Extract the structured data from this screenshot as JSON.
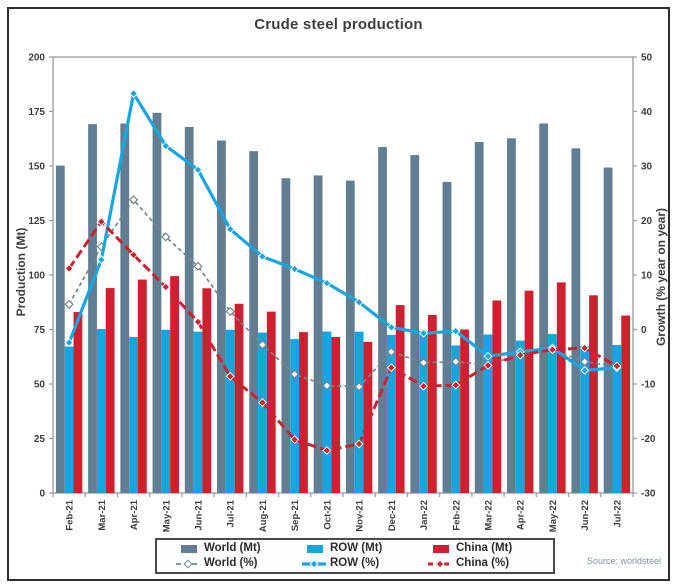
{
  "title": "Crude steel production",
  "source": "Source: worldsteel",
  "colors": {
    "world_bar": "#617e93",
    "row_bar": "#16a5df",
    "china_bar": "#cd2130",
    "world_line": "#76868f",
    "row_line": "#18a6e0",
    "china_line": "#c92331",
    "frame": "#9b9b9b",
    "tick_text": "#3d3d3d",
    "source_text": "#7d91a6",
    "border": "#2e2e2e"
  },
  "chart_data": {
    "type": "combo-bar-line",
    "title": "Crude steel production",
    "grid": false,
    "legend_position": "bottom",
    "categories": [
      "Feb-21",
      "Mar-21",
      "Apr-21",
      "May-21",
      "Jun-21",
      "Jul-21",
      "Aug-21",
      "Sep-21",
      "Oct-21",
      "Nov-21",
      "Dec-21",
      "Jan-22",
      "Feb-22",
      "Mar-22",
      "Apr-22",
      "May-22",
      "Jun-22",
      "Jul-22"
    ],
    "left_axis": {
      "title": "Production (Mt)",
      "min": 0,
      "max": 200,
      "ticks": [
        0,
        25,
        50,
        75,
        100,
        125,
        150,
        175,
        200
      ]
    },
    "right_axis": {
      "title": "Growth (% year on year)",
      "min": -30,
      "max": 50,
      "ticks": [
        -30,
        -20,
        -10,
        0,
        10,
        20,
        30,
        40,
        50
      ]
    },
    "bar_series": [
      {
        "name": "World (Mt)",
        "axis": "left",
        "color_key": "world_bar",
        "values": [
          150.2,
          169.2,
          169.5,
          174.4,
          167.9,
          161.7,
          156.8,
          144.4,
          145.7,
          143.3,
          158.7,
          155.0,
          142.7,
          161.0,
          162.7,
          169.5,
          158.1,
          149.3
        ]
      },
      {
        "name": "ROW (Mt)",
        "axis": "left",
        "color_key": "row_bar",
        "values": [
          67.2,
          75.2,
          71.6,
          74.9,
          74.0,
          74.9,
          73.6,
          70.6,
          74.1,
          74.0,
          72.5,
          73.3,
          67.7,
          72.7,
          69.9,
          72.9,
          67.4,
          67.9
        ]
      },
      {
        "name": "China (Mt)",
        "axis": "left",
        "color_key": "china_bar",
        "values": [
          83.0,
          94.0,
          97.9,
          99.5,
          93.9,
          86.8,
          83.2,
          73.8,
          71.6,
          69.3,
          86.2,
          81.7,
          75.0,
          88.3,
          92.8,
          96.6,
          90.7,
          81.4
        ]
      }
    ],
    "line_series": [
      {
        "name": "World (%)",
        "axis": "right",
        "color_key": "world_line",
        "dashed": true,
        "width": 1.7,
        "marker": "open",
        "values": [
          4.6,
          15.2,
          23.8,
          17.0,
          11.6,
          3.3,
          -2.8,
          -8.2,
          -10.3,
          -10.5,
          -4.1,
          -6.1,
          -5.9,
          -6.5,
          -4.6,
          -3.8,
          -5.9,
          -6.8
        ]
      },
      {
        "name": "ROW (%)",
        "axis": "right",
        "color_key": "row_line",
        "dashed": false,
        "width": 3.2,
        "marker": "filled",
        "values": [
          -2.4,
          12.8,
          43.3,
          33.7,
          29.3,
          18.4,
          13.4,
          11.1,
          8.5,
          5.0,
          0.4,
          -0.7,
          -0.3,
          -4.9,
          -4.1,
          -3.4,
          -7.5,
          -7.0
        ]
      },
      {
        "name": "China (%)",
        "axis": "right",
        "color_key": "china_line",
        "dashed": true,
        "width": 3.0,
        "marker": "filled",
        "values": [
          11.2,
          19.8,
          13.7,
          7.8,
          1.4,
          -8.6,
          -13.4,
          -20.2,
          -22.2,
          -21.0,
          -7.0,
          -10.4,
          -10.2,
          -6.6,
          -4.7,
          -3.7,
          -3.4,
          -6.7
        ]
      }
    ]
  }
}
